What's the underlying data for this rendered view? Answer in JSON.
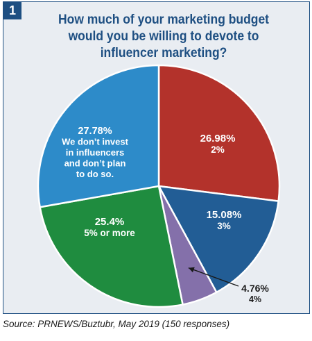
{
  "figure": {
    "badge": "1",
    "title": "How much of your marketing budget would you be willing to devote to influencer marketing?",
    "source": "Source: PRNEWS/Buztubr, May 2019 (150 responses)"
  },
  "colors": {
    "title": "#1e4f82",
    "panel": "#e9edf2",
    "label_light": "#ffffff",
    "label_dark": "#1a1a1a"
  },
  "chart_data": {
    "type": "pie",
    "title": "How much of your marketing budget would you be willing to devote to influencer marketing?",
    "slices": [
      {
        "value": 26.98,
        "value_label": "26.98%",
        "label": "2%",
        "color": "#b3322b",
        "label_color": "#ffffff"
      },
      {
        "value": 15.08,
        "value_label": "15.08%",
        "label": "3%",
        "color": "#225d95",
        "label_color": "#ffffff"
      },
      {
        "value": 4.76,
        "value_label": "4.76%",
        "label": "4%",
        "color": "#8470aa",
        "label_color": "#1a1a1a",
        "outside": true
      },
      {
        "value": 25.4,
        "value_label": "25.4%",
        "label": "5% or more",
        "color": "#1f8c3f",
        "label_color": "#ffffff"
      },
      {
        "value": 27.78,
        "value_label": "27.78%",
        "label": "We don’t invest in influencers and don’t plan to do so.",
        "color": "#2d8bc9",
        "label_color": "#ffffff"
      }
    ]
  }
}
